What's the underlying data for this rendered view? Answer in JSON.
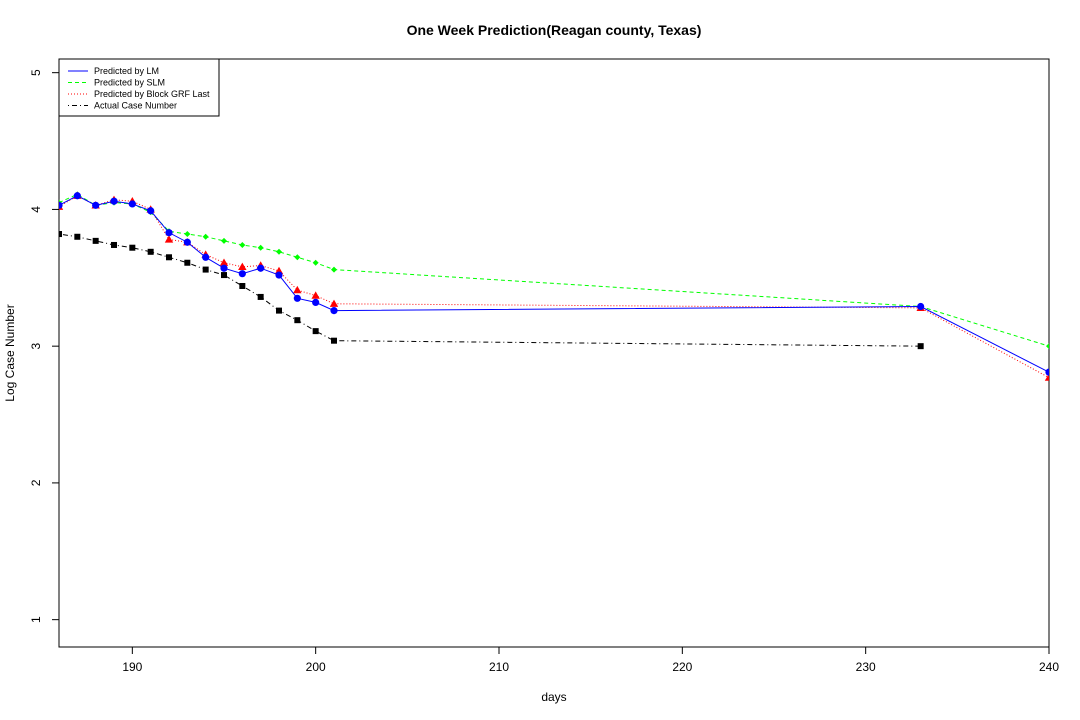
{
  "chart_data": {
    "type": "line",
    "title": "One Week Prediction(Reagan county, Texas)",
    "xlabel": "days",
    "ylabel": "Log Case Number",
    "xlim": [
      186,
      240
    ],
    "ylim": [
      0.8,
      5.1
    ],
    "x_ticks": [
      "190",
      "200",
      "210",
      "220",
      "230",
      "240"
    ],
    "x_tick_values": [
      190,
      200,
      210,
      220,
      230,
      240
    ],
    "y_ticks": [
      "1",
      "2",
      "3",
      "4",
      "5"
    ],
    "y_tick_values": [
      1,
      2,
      3,
      4,
      5
    ],
    "grid": false,
    "legend_position": "top-left",
    "x": [
      186,
      187,
      188,
      189,
      190,
      191,
      192,
      193,
      194,
      195,
      196,
      197,
      198,
      199,
      200,
      201,
      233,
      240
    ],
    "series": [
      {
        "name": "Predicted by LM",
        "color": "#0000ff",
        "line": "solid",
        "marker": "circle",
        "values": [
          4.03,
          4.1,
          4.03,
          4.06,
          4.04,
          3.99,
          3.83,
          3.76,
          3.65,
          3.57,
          3.53,
          3.57,
          3.52,
          3.35,
          3.32,
          3.26,
          3.29,
          2.81
        ]
      },
      {
        "name": "Predicted by SLM",
        "color": "#00ff00",
        "line": "dashed",
        "marker": "diamond",
        "values": [
          4.05,
          4.11,
          4.03,
          4.05,
          4.04,
          3.98,
          3.84,
          3.82,
          3.8,
          3.77,
          3.74,
          3.72,
          3.69,
          3.65,
          3.61,
          3.56,
          3.29,
          3.0
        ]
      },
      {
        "name": "Predicted by Block GRF Last",
        "color": "#ff0000",
        "line": "dotted",
        "marker": "triangle",
        "values": [
          4.02,
          4.1,
          4.03,
          4.07,
          4.06,
          4.0,
          3.78,
          3.76,
          3.67,
          3.61,
          3.58,
          3.59,
          3.55,
          3.41,
          3.37,
          3.31,
          3.28,
          2.77
        ]
      },
      {
        "name": "Actual Case Number",
        "color": "#000000",
        "line": "dotdash",
        "marker": "square",
        "values": [
          3.82,
          3.8,
          3.77,
          3.74,
          3.72,
          3.69,
          3.65,
          3.61,
          3.56,
          3.52,
          3.44,
          3.36,
          3.26,
          3.19,
          3.11,
          3.04,
          3.0,
          null
        ]
      }
    ]
  }
}
